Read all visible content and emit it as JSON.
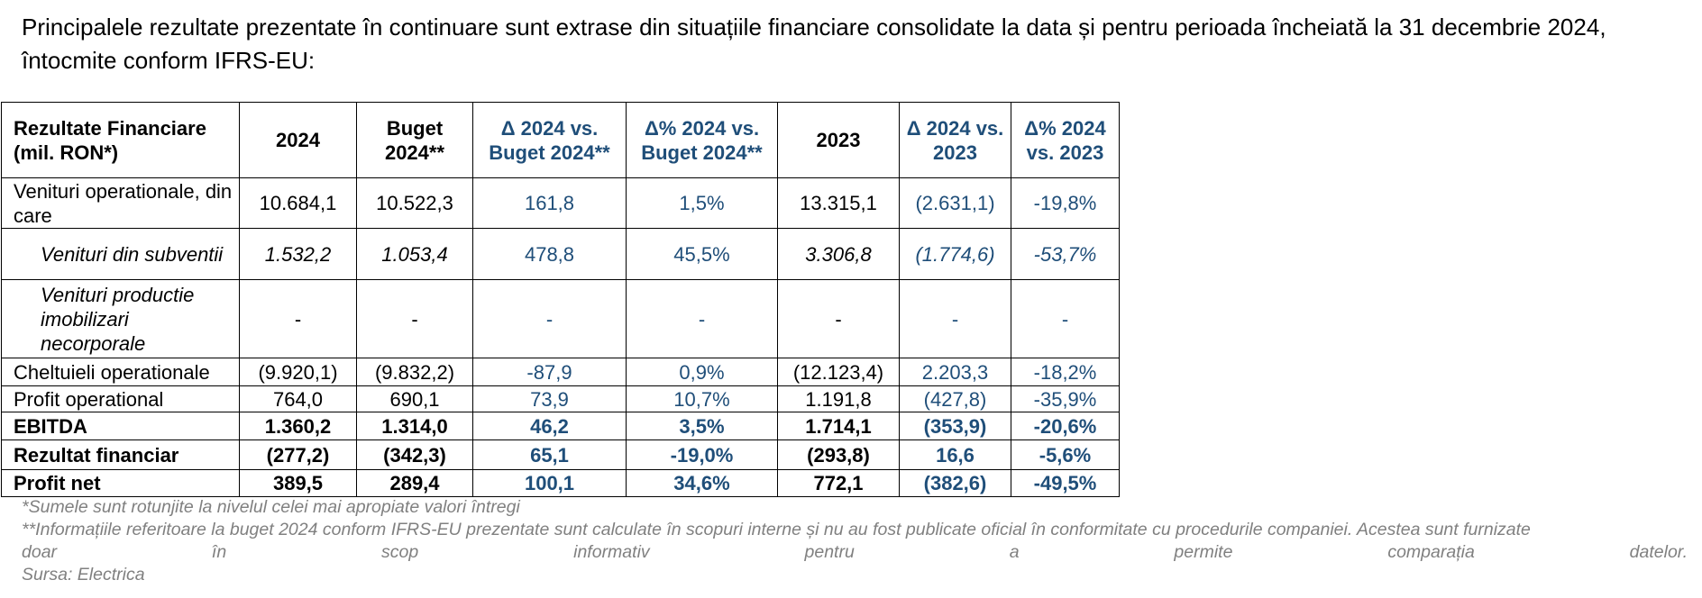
{
  "intro": "Principalele rezultate prezentate în continuare sunt extrase din situațiile financiare consolidate la data și pentru perioada încheiată la 31 decembrie 2024, întocmite conform IFRS-EU:",
  "table": {
    "headers": [
      "Rezultate Financiare (mil. RON*)",
      "2024",
      "Buget 2024**",
      "Δ 2024 vs. Buget 2024**",
      "Δ% 2024 vs. Buget 2024**",
      "2023",
      "Δ 2024 vs. 2023",
      "Δ% 2024 vs. 2023"
    ],
    "rows": [
      [
        "Venituri operationale, din care",
        "10.684,1",
        "10.522,3",
        "161,8",
        "1,5%",
        "13.315,1",
        "(2.631,1)",
        "-19,8%"
      ],
      [
        "Venituri din subventii",
        "1.532,2",
        "1.053,4",
        "478,8",
        "45,5%",
        "3.306,8",
        "(1.774,6)",
        "-53,7%"
      ],
      [
        "Venituri productie imobilizari necorporale",
        "-",
        "-",
        "-",
        "-",
        "-",
        "-",
        "-"
      ],
      [
        "Cheltuieli operationale",
        "(9.920,1)",
        "(9.832,2)",
        "-87,9",
        "0,9%",
        "(12.123,4)",
        "2.203,3",
        "-18,2%"
      ],
      [
        "Profit operational",
        "764,0",
        "690,1",
        "73,9",
        "10,7%",
        "1.191,8",
        "(427,8)",
        "-35,9%"
      ],
      [
        "EBITDA",
        "1.360,2",
        "1.314,0",
        "46,2",
        "3,5%",
        "1.714,1",
        "(353,9)",
        "-20,6%"
      ],
      [
        "Rezultat financiar",
        "(277,2)",
        "(342,3)",
        "65,1",
        "-19,0%",
        "(293,8)",
        "16,6",
        "-5,6%"
      ],
      [
        "Profit net",
        "389,5",
        "289,4",
        "100,1",
        "34,6%",
        "772,1",
        "(382,6)",
        "-49,5%"
      ]
    ]
  },
  "footnotes": {
    "note1": "*Sumele sunt rotunjite la nivelul celei mai apropiate valori întregi",
    "note2_line1": "**Informațiile referitoare la buget 2024 conform IFRS-EU prezentate sunt calculate în scopuri interne și nu au fost publicate oficial în conformitate cu procedurile companiei. Acestea sunt furnizate",
    "note2_line2": "doar în scop informativ pentru a permite comparația datelor.",
    "source": "Sursa: Electrica"
  },
  "colors": {
    "text": "#000000",
    "accent_blue": "#1f4e79",
    "footnote_gray": "#808080"
  }
}
